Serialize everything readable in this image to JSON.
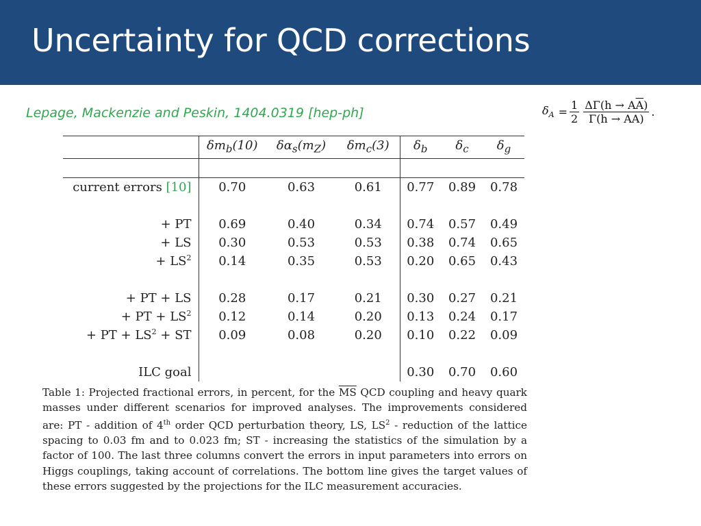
{
  "slide": {
    "title": "Uncertainty for QCD corrections",
    "citation": "Lepage, Mackenzie and Peskin, 1404.0319 [hep-ph]"
  },
  "formula": {
    "lhs_symbol": "δ",
    "lhs_sub": "A",
    "equals": "=",
    "frac1_num": "1",
    "frac1_den": "2",
    "frac2_num": "ΔΓ(h → AA)",
    "frac2_den": "Γ(h → AA)",
    "tail": "."
  },
  "table": {
    "columns": [
      "δm_b(10)",
      "δα_s(m_Z)",
      "δm_c(3)",
      "δ_b",
      "δ_c",
      "δ_g"
    ],
    "rows": [
      {
        "label": "current errors",
        "ref": "[10]",
        "values": [
          "0.70",
          "0.63",
          "0.61",
          "0.77",
          "0.89",
          "0.78"
        ]
      },
      {
        "label": "+ PT",
        "values": [
          "0.69",
          "0.40",
          "0.34",
          "0.74",
          "0.57",
          "0.49"
        ]
      },
      {
        "label": "+ LS",
        "values": [
          "0.30",
          "0.53",
          "0.53",
          "0.38",
          "0.74",
          "0.65"
        ]
      },
      {
        "label": "+ LS",
        "sup": "2",
        "values": [
          "0.14",
          "0.35",
          "0.53",
          "0.20",
          "0.65",
          "0.43"
        ]
      },
      {
        "label": "+ PT + LS",
        "values": [
          "0.28",
          "0.17",
          "0.21",
          "0.30",
          "0.27",
          "0.21"
        ]
      },
      {
        "label": "+ PT + LS",
        "sup": "2",
        "values": [
          "0.12",
          "0.14",
          "0.20",
          "0.13",
          "0.24",
          "0.17"
        ]
      },
      {
        "label": "+ PT + LS",
        "sup": "2",
        "label_tail": " + ST",
        "values": [
          "0.09",
          "0.08",
          "0.20",
          "0.10",
          "0.22",
          "0.09"
        ]
      },
      {
        "label": "ILC goal",
        "values": [
          "",
          "",
          "",
          "0.30",
          "0.70",
          "0.60"
        ]
      }
    ]
  },
  "caption": {
    "p1": "Table 1: Projected fractional errors, in percent, for the ",
    "ms": "MS",
    "p2": " QCD coupling and heavy quark masses under different scenarios for improved analyses. The improvements considered are: PT - addition of 4",
    "th": "th",
    "p3": " order QCD perturbation theory, LS, LS",
    "sq": "2",
    "p4": " - reduction of the lattice spacing to 0.03 fm and to 0.023 fm; ST - increasing the statistics of the simulation by a factor of 100. The last three columns convert the errors in input parameters into errors on Higgs couplings, taking account of correlations. The bottom line gives the target values of these errors suggested by the projections for the ILC measurement accuracies."
  }
}
